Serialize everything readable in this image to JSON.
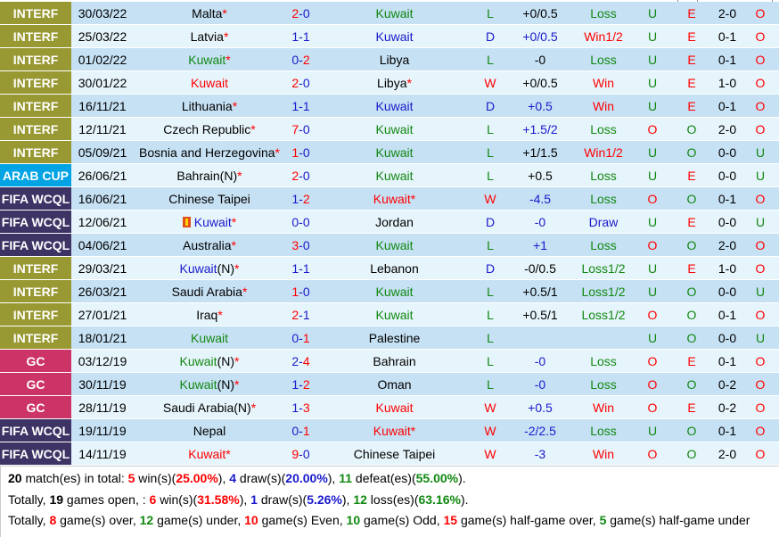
{
  "colors": {
    "interf": "#999933",
    "arab_cup": "#00a3e3",
    "fifa_wcql": "#3d3364",
    "gc": "#cc3366",
    "row_dark": "#c6e1f4",
    "row_light": "#e6f4fb",
    "red": "#ff0000",
    "blue": "#1a1acc",
    "green": "#118811"
  },
  "matches": [
    {
      "league": "INTERF",
      "date": "30/03/22",
      "home": "Malta",
      "home_star": "*",
      "score_h": "2",
      "score_a": "0",
      "away": "Kuwait",
      "away_star": "",
      "result": "L",
      "handicap": "+0/0.5",
      "hc_result": "Loss",
      "ou": "U",
      "oe": "E",
      "ht": "2-0",
      "ht_ou": "O"
    },
    {
      "league": "INTERF",
      "date": "25/03/22",
      "home": "Latvia",
      "home_star": "*",
      "score_h": "1",
      "score_a": "1",
      "away": "Kuwait",
      "away_star": "",
      "result": "D",
      "handicap": "+0/0.5",
      "hc_result": "Win1/2",
      "ou": "U",
      "oe": "E",
      "ht": "0-1",
      "ht_ou": "O"
    },
    {
      "league": "INTERF",
      "date": "01/02/22",
      "home": "Kuwait",
      "home_star": "*",
      "score_h": "0",
      "score_a": "2",
      "away": "Libya",
      "away_star": "",
      "result": "L",
      "handicap": "-0",
      "hc_result": "Loss",
      "ou": "U",
      "oe": "E",
      "ht": "0-1",
      "ht_ou": "O"
    },
    {
      "league": "INTERF",
      "date": "30/01/22",
      "home": "Kuwait",
      "home_star": "",
      "score_h": "2",
      "score_a": "0",
      "away": "Libya",
      "away_star": "*",
      "result": "W",
      "handicap": "+0/0.5",
      "hc_result": "Win",
      "ou": "U",
      "oe": "E",
      "ht": "1-0",
      "ht_ou": "O"
    },
    {
      "league": "INTERF",
      "date": "16/11/21",
      "home": "Lithuania",
      "home_star": "*",
      "score_h": "1",
      "score_a": "1",
      "away": "Kuwait",
      "away_star": "",
      "result": "D",
      "handicap": "+0.5",
      "hc_result": "Win",
      "ou": "U",
      "oe": "E",
      "ht": "0-1",
      "ht_ou": "O"
    },
    {
      "league": "INTERF",
      "date": "12/11/21",
      "home": "Czech Republic",
      "home_star": "*",
      "score_h": "7",
      "score_a": "0",
      "away": "Kuwait",
      "away_star": "",
      "result": "L",
      "handicap": "+1.5/2",
      "hc_result": "Loss",
      "ou": "O",
      "oe": "O",
      "ht": "2-0",
      "ht_ou": "O"
    },
    {
      "league": "INTERF",
      "date": "05/09/21",
      "home": "Bosnia and Herzegovina",
      "home_star": "*",
      "score_h": "1",
      "score_a": "0",
      "away": "Kuwait",
      "away_star": "",
      "result": "L",
      "handicap": "+1/1.5",
      "hc_result": "Win1/2",
      "ou": "U",
      "oe": "O",
      "ht": "0-0",
      "ht_ou": "U"
    },
    {
      "league": "ARAB CUP",
      "date": "26/06/21",
      "home": "Bahrain(N)",
      "home_star": "*",
      "score_h": "2",
      "score_a": "0",
      "away": "Kuwait",
      "away_star": "",
      "result": "L",
      "handicap": "+0.5",
      "hc_result": "Loss",
      "ou": "U",
      "oe": "E",
      "ht": "0-0",
      "ht_ou": "U"
    },
    {
      "league": "FIFA WCQL",
      "date": "16/06/21",
      "home": "Chinese Taipei",
      "home_star": "",
      "score_h": "1",
      "score_a": "2",
      "away": "Kuwait",
      "away_star": "*",
      "result": "W",
      "handicap": "-4.5",
      "hc_result": "Loss",
      "ou": "O",
      "oe": "O",
      "ht": "0-1",
      "ht_ou": "O"
    },
    {
      "league": "FIFA WCQL",
      "date": "12/06/21",
      "home": "Kuwait",
      "home_star": "*",
      "home_flag": "red-card-icon",
      "score_h": "0",
      "score_a": "0",
      "away": "Jordan",
      "away_star": "",
      "result": "D",
      "handicap": "-0",
      "hc_result": "Draw",
      "ou": "U",
      "oe": "E",
      "ht": "0-0",
      "ht_ou": "U"
    },
    {
      "league": "FIFA WCQL",
      "date": "04/06/21",
      "home": "Australia",
      "home_star": "*",
      "score_h": "3",
      "score_a": "0",
      "away": "Kuwait",
      "away_star": "",
      "result": "L",
      "handicap": "+1",
      "hc_result": "Loss",
      "ou": "O",
      "oe": "O",
      "ht": "2-0",
      "ht_ou": "O"
    },
    {
      "league": "INTERF",
      "date": "29/03/21",
      "home": "Kuwait",
      "home_suffix": "(N)",
      "home_star": "*",
      "score_h": "1",
      "score_a": "1",
      "away": "Lebanon",
      "away_star": "",
      "result": "D",
      "handicap": "-0/0.5",
      "hc_result": "Loss1/2",
      "ou": "U",
      "oe": "E",
      "ht": "1-0",
      "ht_ou": "O"
    },
    {
      "league": "INTERF",
      "date": "26/03/21",
      "home": "Saudi Arabia",
      "home_star": "*",
      "score_h": "1",
      "score_a": "0",
      "away": "Kuwait",
      "away_star": "",
      "result": "L",
      "handicap": "+0.5/1",
      "hc_result": "Loss1/2",
      "ou": "U",
      "oe": "O",
      "ht": "0-0",
      "ht_ou": "U"
    },
    {
      "league": "INTERF",
      "date": "27/01/21",
      "home": "Iraq",
      "home_star": "*",
      "score_h": "2",
      "score_a": "1",
      "away": "Kuwait",
      "away_star": "",
      "result": "L",
      "handicap": "+0.5/1",
      "hc_result": "Loss1/2",
      "ou": "O",
      "oe": "O",
      "ht": "0-1",
      "ht_ou": "O"
    },
    {
      "league": "INTERF",
      "date": "18/01/21",
      "home": "Kuwait",
      "home_star": "",
      "score_h": "0",
      "score_a": "1",
      "away": "Palestine",
      "away_star": "",
      "result": "L",
      "handicap": "",
      "hc_result": "",
      "ou": "U",
      "oe": "O",
      "ht": "0-0",
      "ht_ou": "U"
    },
    {
      "league": "GC",
      "date": "03/12/19",
      "home": "Kuwait",
      "home_suffix": "(N)",
      "home_star": "*",
      "score_h": "2",
      "score_a": "4",
      "away": "Bahrain",
      "away_star": "",
      "result": "L",
      "handicap": "-0",
      "hc_result": "Loss",
      "ou": "O",
      "oe": "E",
      "ht": "0-1",
      "ht_ou": "O"
    },
    {
      "league": "GC",
      "date": "30/11/19",
      "home": "Kuwait",
      "home_suffix": "(N)",
      "home_star": "*",
      "score_h": "1",
      "score_a": "2",
      "away": "Oman",
      "away_star": "",
      "result": "L",
      "handicap": "-0",
      "hc_result": "Loss",
      "ou": "O",
      "oe": "O",
      "ht": "0-2",
      "ht_ou": "O"
    },
    {
      "league": "GC",
      "date": "28/11/19",
      "home": "Saudi Arabia(N)",
      "home_star": "*",
      "score_h": "1",
      "score_a": "3",
      "away": "Kuwait",
      "away_star": "",
      "result": "W",
      "handicap": "+0.5",
      "hc_result": "Win",
      "ou": "O",
      "oe": "E",
      "ht": "0-2",
      "ht_ou": "O"
    },
    {
      "league": "FIFA WCQL",
      "date": "19/11/19",
      "home": "Nepal",
      "home_star": "",
      "score_h": "0",
      "score_a": "1",
      "away": "Kuwait",
      "away_star": "*",
      "result": "W",
      "handicap": "-2/2.5",
      "hc_result": "Loss",
      "ou": "U",
      "oe": "O",
      "ht": "0-1",
      "ht_ou": "O"
    },
    {
      "league": "FIFA WCQL",
      "date": "14/11/19",
      "home": "Kuwait",
      "home_star": "*",
      "score_h": "9",
      "score_a": "0",
      "away": "Chinese Taipei",
      "away_star": "",
      "result": "W",
      "handicap": "-3",
      "hc_result": "Win",
      "ou": "O",
      "oe": "O",
      "ht": "2-0",
      "ht_ou": "O"
    }
  ],
  "summary": {
    "line1": {
      "total": "20",
      "t1": " match(es) in total: ",
      "wins": "5",
      "t2": " win(s)(",
      "win_pct": "25.00%",
      "t3": "), ",
      "draws": "4",
      "t4": " draw(s)(",
      "draw_pct": "20.00%",
      "t5": "), ",
      "defeats": "11",
      "t6": " defeat(es)(",
      "defeat_pct": "55.00%",
      "t7": ")."
    },
    "line2": {
      "t0": "Totally, ",
      "open": "19",
      "t1": " games open, : ",
      "wins": "6",
      "t2": " win(s)(",
      "win_pct": "31.58%",
      "t3": "), ",
      "draws": "1",
      "t4": " draw(s)(",
      "draw_pct": "5.26%",
      "t5": "), ",
      "losses": "12",
      "t6": " loss(es)(",
      "loss_pct": "63.16%",
      "t7": ")."
    },
    "line3": {
      "t0": "Totally, ",
      "over": "8",
      "t1": " game(s) over, ",
      "under": "12",
      "t2": " game(s) under, ",
      "even": "10",
      "t3": " game(s) Even, ",
      "odd": "10",
      "t4": " game(s) Odd, ",
      "hg_over": "15",
      "t5": " game(s) half-game over, ",
      "hg_under": "5",
      "t6": " game(s) half-game under"
    }
  }
}
